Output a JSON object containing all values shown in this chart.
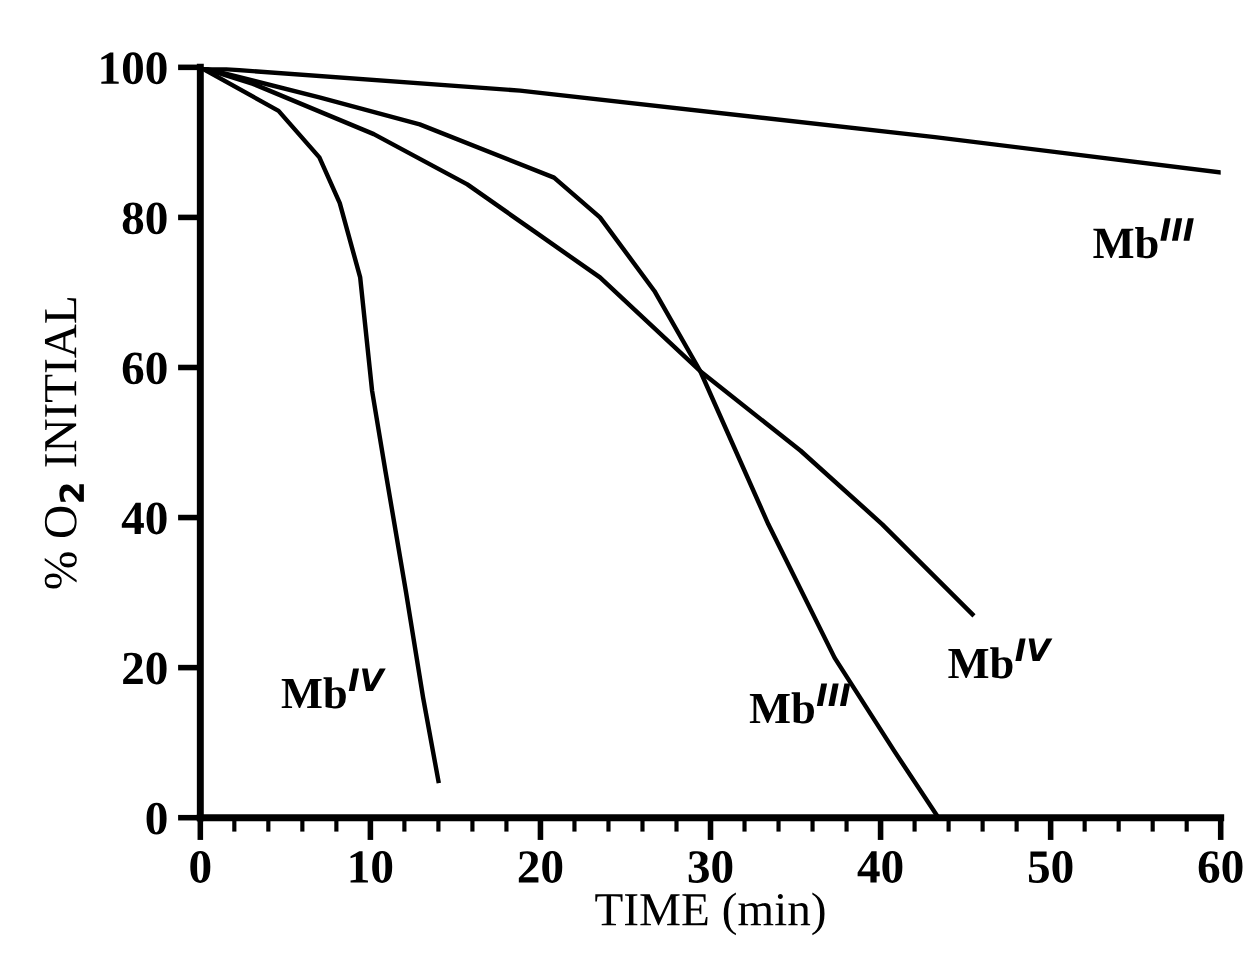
{
  "chart_data": {
    "type": "line",
    "xlabel": "TIME (min)",
    "ylabel": "% O$_{2}$ INITIAL",
    "xlim": [
      0,
      60
    ],
    "ylim": [
      0,
      100
    ],
    "xticks": [
      0,
      10,
      20,
      30,
      40,
      50,
      60
    ],
    "yticks": [
      0,
      20,
      40,
      60,
      80,
      100
    ],
    "grid": false,
    "legend": false,
    "marker": "none",
    "line_style": "solid",
    "series": [
      {
        "name": "Mb$^{III}$",
        "color": "#000000",
        "x": [
          0,
          18.8,
          43.2,
          60
        ],
        "values": [
          100,
          96.9,
          90.7,
          86
        ]
      },
      {
        "name": "Mb$^{IV}$",
        "color": "#000000",
        "x": [
          0,
          3.1,
          10.2,
          15.7,
          19.6,
          23.5,
          29.4,
          35.3,
          40.1,
          45.4
        ],
        "values": [
          100,
          97.8,
          91.1,
          84.4,
          78.2,
          72,
          59.5,
          48.9,
          39.1,
          27.1
        ]
      },
      {
        "name": "Mb$^{III}$",
        "color": "#000000",
        "x": [
          0,
          7,
          12.9,
          20.8,
          23.5,
          26.7,
          29.4,
          33.4,
          37.3,
          40.8,
          43.4
        ],
        "values": [
          100,
          96,
          92.4,
          85.3,
          80,
          70.2,
          59.5,
          39.1,
          21.3,
          8.9,
          0
        ]
      },
      {
        "name": "Mb$^{IV}$",
        "color": "#000000",
        "x": [
          0,
          4.6,
          7,
          8.2,
          9.4,
          10.1,
          10.9,
          12.1,
          13.1,
          14
        ],
        "values": [
          100,
          94.2,
          88,
          81.9,
          72,
          56.9,
          46,
          30,
          16,
          4.9
        ]
      }
    ]
  }
}
